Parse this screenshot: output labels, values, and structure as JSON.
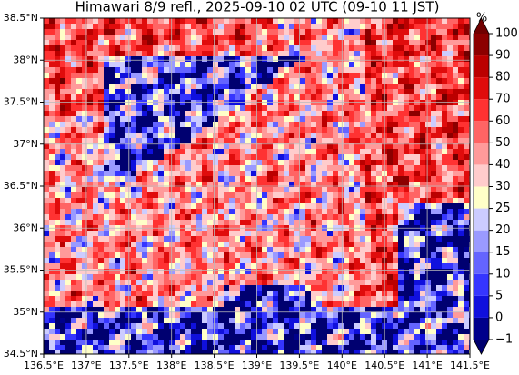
{
  "title": "Himawari 8/9 refl., 2025-09-10 02 UTC (09-10 11 JST)",
  "map": {
    "xlim": [
      136.5,
      141.5
    ],
    "ylim": [
      34.5,
      38.5
    ],
    "xticks": [
      {
        "value": 136.5,
        "label": "136.5°E"
      },
      {
        "value": 137,
        "label": "137°E"
      },
      {
        "value": 137.5,
        "label": "137.5°E"
      },
      {
        "value": 138,
        "label": "138°E"
      },
      {
        "value": 138.5,
        "label": "138.5°E"
      },
      {
        "value": 139,
        "label": "139°E"
      },
      {
        "value": 139.5,
        "label": "139.5°E"
      },
      {
        "value": 140,
        "label": "140°E"
      },
      {
        "value": 140.5,
        "label": "140.5°E"
      },
      {
        "value": 141,
        "label": "141°E"
      },
      {
        "value": 141.5,
        "label": "141.5°E"
      }
    ],
    "yticks": [
      {
        "value": 34.5,
        "label": "34.5°N"
      },
      {
        "value": 35,
        "label": "35°N"
      },
      {
        "value": 35.5,
        "label": "35.5°N"
      },
      {
        "value": 36,
        "label": "36°N"
      },
      {
        "value": 36.5,
        "label": "36.5°N"
      },
      {
        "value": 37,
        "label": "37°N"
      },
      {
        "value": 37.5,
        "label": "37.5°N"
      },
      {
        "value": 38,
        "label": "38°N"
      },
      {
        "value": 38.5,
        "label": "38.5°N"
      }
    ],
    "grid": true
  },
  "colorbar": {
    "unit": "%",
    "levels": [
      {
        "value": -1,
        "label": "−1"
      },
      0,
      5,
      10,
      15,
      20,
      25,
      30,
      40,
      50,
      60,
      70,
      80,
      90,
      100
    ],
    "colors": [
      "#00008b",
      "#1010dd",
      "#3535ff",
      "#6464ff",
      "#9a9aff",
      "#ccccff",
      "#ffffc8",
      "#ffcccc",
      "#ff9a9a",
      "#ff6464",
      "#ff3232",
      "#e00c0c",
      "#bb0000",
      "#8c0000"
    ],
    "under_color": "#000070",
    "over_color": "#700000"
  }
}
